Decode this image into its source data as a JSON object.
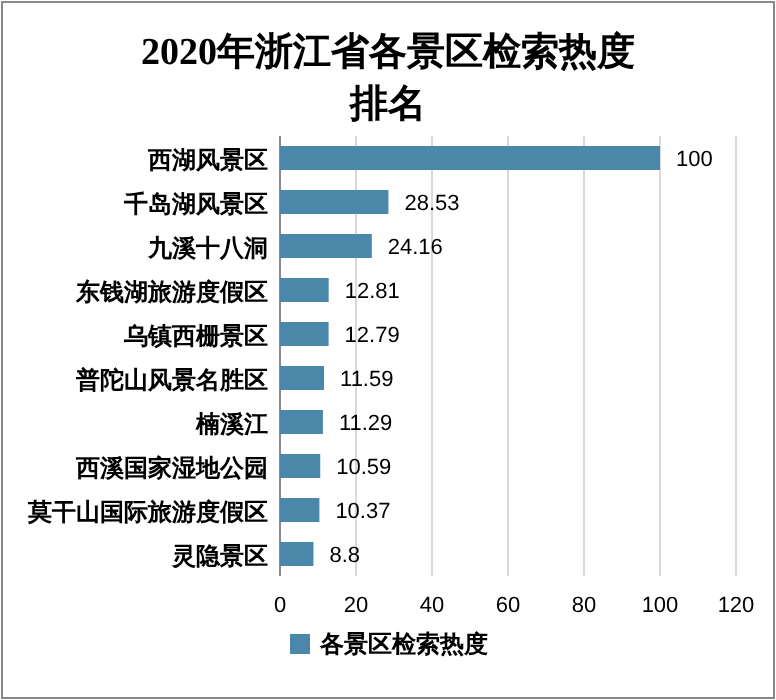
{
  "chart_data": {
    "type": "bar",
    "orientation": "horizontal",
    "title": "2020年浙江省各景区检索热度排名",
    "categories": [
      "西湖风景区",
      "千岛湖风景区",
      "九溪十八洞",
      "东钱湖旅游度假区",
      "乌镇西栅景区",
      "普陀山风景名胜区",
      "楠溪江",
      "西溪国家湿地公园",
      "莫干山国际旅游度假区",
      "灵隐景区"
    ],
    "series": [
      {
        "name": "各景区检索热度",
        "color": "#4a87a8",
        "values": [
          100,
          28.53,
          24.16,
          12.81,
          12.79,
          11.59,
          11.29,
          10.59,
          10.37,
          8.8
        ]
      }
    ],
    "xlim": [
      0,
      120
    ],
    "xticks": [
      0,
      20,
      40,
      60,
      80,
      100,
      120
    ],
    "grid": "x",
    "data_labels": true,
    "legend": "bottom"
  }
}
